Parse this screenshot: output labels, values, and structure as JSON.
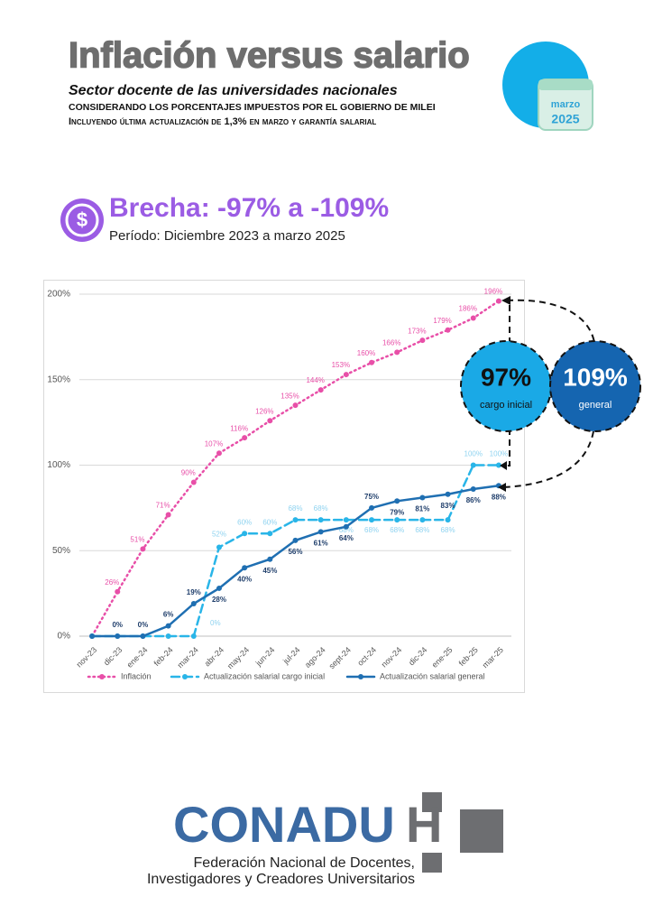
{
  "header": {
    "title": "Inflación versus salario",
    "subtitle": "Sector docente de las universidades nacionales",
    "line1": "CONSIDERANDO LOS PORCENTAJES IMPUESTOS POR EL GOBIERNO DE MILEI",
    "line2": "Incluyendo última actualización de 1,3% en marzo y garantía salarial",
    "calendar_month": "marzo",
    "calendar_year": "2025"
  },
  "brecha": {
    "icon": "$",
    "title": "Brecha: -97% a -109%",
    "period": "Período: Diciembre 2023 a marzo 2025"
  },
  "chart_data": {
    "type": "line",
    "categories": [
      "nov-23",
      "dic-23",
      "ene-24",
      "feb-24",
      "mar-24",
      "abr-24",
      "may-24",
      "jun-24",
      "jul-24",
      "ago-24",
      "sept-24",
      "oct-24",
      "nov-24",
      "dic-24",
      "ene-25",
      "feb-25",
      "mar-25"
    ],
    "series": [
      {
        "name": "Inflación",
        "color": "#e84fa8",
        "style": "dotted",
        "values": [
          0,
          26,
          51,
          71,
          90,
          107,
          116,
          126,
          135,
          144,
          153,
          160,
          166,
          173,
          179,
          186,
          196
        ],
        "value_labels": [
          null,
          "26%",
          "51%",
          "71%",
          "90%",
          "107%",
          "116%",
          "126%",
          "135%",
          "144%",
          "153%",
          "160%",
          "166%",
          "173%",
          "179%",
          "186%",
          "196%"
        ]
      },
      {
        "name": "Actualización salarial cargo inicial",
        "color": "#29b5e8",
        "style": "dashed",
        "values": [
          0,
          0,
          0,
          0,
          0,
          52,
          60,
          60,
          68,
          68,
          68,
          68,
          68,
          68,
          68,
          100,
          100
        ],
        "value_labels": [
          null,
          null,
          null,
          null,
          "0%",
          "52%",
          "60%",
          "60%",
          "68%",
          "68%",
          "68%",
          "68%",
          "68%",
          "68%",
          "68%",
          "100%",
          "100%"
        ]
      },
      {
        "name": "Actualización salarial general",
        "color": "#1f6fb2",
        "style": "solid",
        "values": [
          0,
          0,
          0,
          6,
          19,
          28,
          40,
          45,
          56,
          61,
          64,
          75,
          79,
          81,
          83,
          86,
          88
        ],
        "value_labels": [
          null,
          "0%",
          "0%",
          "6%",
          "19%",
          "28%",
          "40%",
          "45%",
          "56%",
          "61%",
          "64%",
          "75%",
          "79%",
          "81%",
          "83%",
          "86%",
          "88%"
        ]
      }
    ],
    "ylim": [
      0,
      200
    ],
    "yticks": [
      {
        "value": 0,
        "label": "0%"
      },
      {
        "value": 50,
        "label": "50%"
      },
      {
        "value": 100,
        "label": "100%"
      },
      {
        "value": 150,
        "label": "150%"
      },
      {
        "value": 200,
        "label": "200%"
      }
    ],
    "grid": true,
    "legend": "bottom",
    "annotations": [
      {
        "value": "97%",
        "label": "cargo inicial"
      },
      {
        "value": "109%",
        "label": "general"
      }
    ]
  },
  "footer": {
    "logo": "CONADU",
    "logo_letter": "H",
    "line1": "Federación Nacional de Docentes,",
    "line2": "Investigadores y Creadores Universitarios"
  }
}
